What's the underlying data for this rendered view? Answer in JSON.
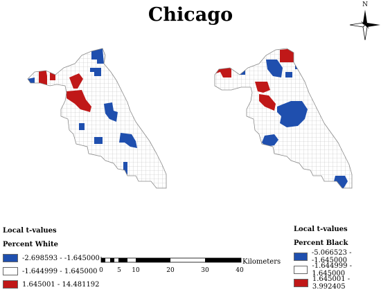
{
  "title": "Chicago",
  "north_arrow": {
    "label": "N",
    "icon": "north-arrow-icon"
  },
  "colors": {
    "negative": "#1f4fae",
    "neutral": "#ffffff",
    "positive": "#c01818",
    "grid": "#b9b9b9",
    "outline": "#888888"
  },
  "maps": [
    {
      "name": "percent-white-map"
    },
    {
      "name": "percent-black-map"
    }
  ],
  "legend_left": {
    "heading": "Local t-values",
    "subheading": "Percent White",
    "classes": [
      {
        "label": "-2.698593 - -1.645000",
        "color": "#1f4fae"
      },
      {
        "label": "-1.644999 - 1.645000",
        "color": "#ffffff"
      },
      {
        "label": "1.645001 - 14.481192",
        "color": "#c01818"
      }
    ]
  },
  "legend_right": {
    "heading": "Local t-values",
    "subheading": "Percent Black",
    "classes": [
      {
        "label": "-5.066523 - -1.645000",
        "color": "#1f4fae"
      },
      {
        "label": "-1.644999 - 1.645000",
        "color": "#ffffff"
      },
      {
        "label": "1.645001 - 3.992405",
        "color": "#c01818"
      }
    ]
  },
  "scale_bar": {
    "ticks": [
      "0",
      "5",
      "10",
      "20",
      "30",
      "40"
    ],
    "unit": "Kilometers"
  }
}
